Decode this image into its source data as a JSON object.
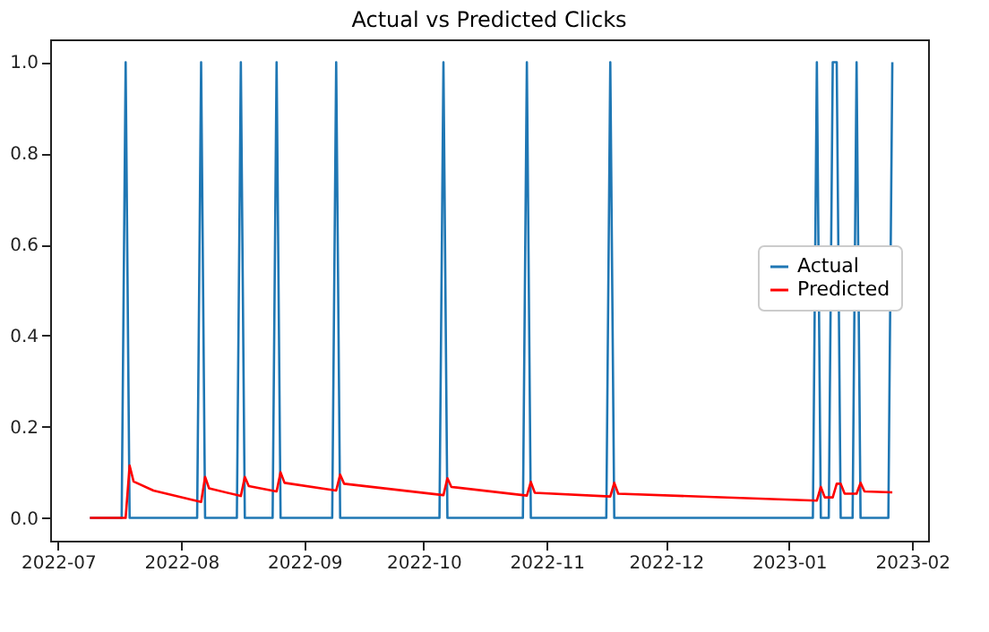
{
  "chart_data": {
    "type": "line",
    "title": "Actual vs Predicted Clicks",
    "series": [
      {
        "name": "Actual",
        "color": "#1f77b4",
        "x": [
          "2022-07-09",
          "2022-07-17",
          "2022-07-18",
          "2022-07-19",
          "2022-08-05",
          "2022-08-06",
          "2022-08-07",
          "2022-08-15",
          "2022-08-16",
          "2022-08-17",
          "2022-08-24",
          "2022-08-25",
          "2022-08-26",
          "2022-09-08",
          "2022-09-09",
          "2022-09-10",
          "2022-10-05",
          "2022-10-06",
          "2022-10-07",
          "2022-10-26",
          "2022-10-27",
          "2022-10-28",
          "2022-11-16",
          "2022-11-17",
          "2022-11-18",
          "2023-01-07",
          "2023-01-08",
          "2023-01-09",
          "2023-01-11",
          "2023-01-12",
          "2023-01-13",
          "2023-01-14",
          "2023-01-17",
          "2023-01-18",
          "2023-01-19",
          "2023-01-26",
          "2023-01-27"
        ],
        "values": [
          0,
          0,
          1,
          0,
          0,
          1,
          0,
          0,
          1,
          0,
          0,
          1,
          0,
          0,
          1,
          0,
          0,
          1,
          0,
          0,
          1,
          0,
          0,
          1,
          0,
          0,
          1,
          0,
          0,
          1,
          1,
          0,
          0,
          1,
          0,
          0,
          1
        ]
      },
      {
        "name": "Predicted",
        "color": "#ff0000",
        "x": [
          "2022-07-09",
          "2022-07-18",
          "2022-07-19",
          "2022-07-20",
          "2022-07-25",
          "2022-08-06",
          "2022-08-07",
          "2022-08-08",
          "2022-08-16",
          "2022-08-17",
          "2022-08-18",
          "2022-08-25",
          "2022-08-26",
          "2022-08-27",
          "2022-09-09",
          "2022-09-10",
          "2022-09-11",
          "2022-10-06",
          "2022-10-07",
          "2022-10-08",
          "2022-10-27",
          "2022-10-28",
          "2022-10-29",
          "2022-11-17",
          "2022-11-18",
          "2022-11-19",
          "2023-01-08",
          "2023-01-09",
          "2023-01-10",
          "2023-01-12",
          "2023-01-13",
          "2023-01-14",
          "2023-01-15",
          "2023-01-18",
          "2023-01-19",
          "2023-01-20",
          "2023-01-27"
        ],
        "values": [
          0,
          0,
          0.115,
          0.08,
          0.06,
          0.035,
          0.09,
          0.065,
          0.048,
          0.09,
          0.07,
          0.058,
          0.1,
          0.077,
          0.06,
          0.095,
          0.075,
          0.05,
          0.087,
          0.068,
          0.049,
          0.079,
          0.055,
          0.047,
          0.077,
          0.053,
          0.038,
          0.068,
          0.045,
          0.045,
          0.075,
          0.075,
          0.053,
          0.053,
          0.077,
          0.058,
          0.056
        ]
      }
    ],
    "xlim": [
      "2022-06-29",
      "2023-02-05"
    ],
    "xticks": [
      {
        "value": "2022-07-01",
        "label": "2022-07"
      },
      {
        "value": "2022-08-01",
        "label": "2022-08"
      },
      {
        "value": "2022-09-01",
        "label": "2022-09"
      },
      {
        "value": "2022-10-01",
        "label": "2022-10"
      },
      {
        "value": "2022-11-01",
        "label": "2022-11"
      },
      {
        "value": "2022-12-01",
        "label": "2022-12"
      },
      {
        "value": "2023-01-01",
        "label": "2023-01"
      },
      {
        "value": "2023-02-01",
        "label": "2023-02"
      }
    ],
    "ylim": [
      -0.05,
      1.05
    ],
    "yticks": [
      {
        "value": 0,
        "label": "0.0"
      },
      {
        "value": 0.2,
        "label": "0.2"
      },
      {
        "value": 0.4,
        "label": "0.4"
      },
      {
        "value": 0.6,
        "label": "0.6"
      },
      {
        "value": 0.8,
        "label": "0.8"
      },
      {
        "value": 1,
        "label": "1.0"
      }
    ],
    "legend": "right",
    "grid": false,
    "marker": "none",
    "line_style": "solid"
  }
}
